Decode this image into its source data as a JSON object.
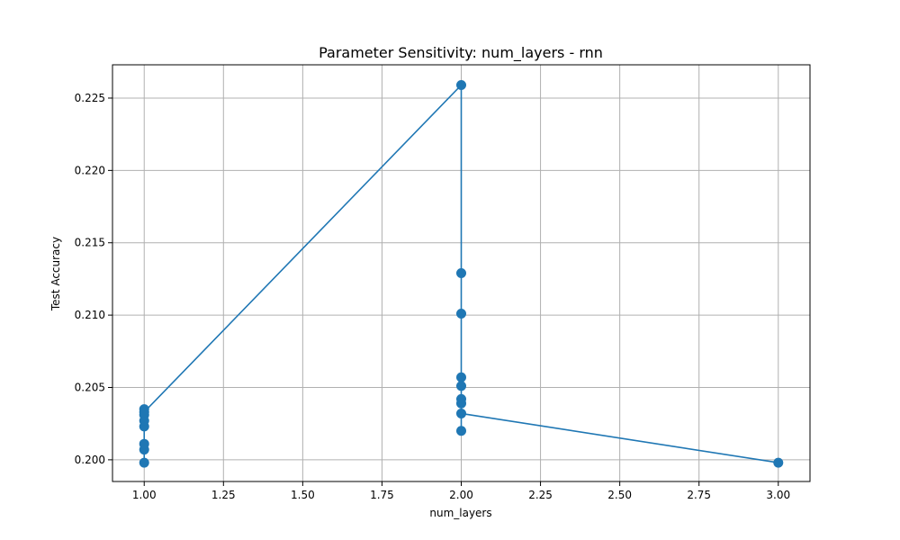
{
  "chart_data": {
    "type": "line",
    "title": "Parameter Sensitivity: num_layers - rnn",
    "xlabel": "num_layers",
    "ylabel": "Test Accuracy",
    "xlim": [
      0.9,
      3.1
    ],
    "ylim": [
      0.1985,
      0.2273
    ],
    "xticks": [
      1.0,
      1.25,
      1.5,
      1.75,
      2.0,
      2.25,
      2.5,
      2.75,
      3.0
    ],
    "xtick_labels": [
      "1.00",
      "1.25",
      "1.50",
      "1.75",
      "2.00",
      "2.25",
      "2.50",
      "2.75",
      "3.00"
    ],
    "yticks": [
      0.2,
      0.205,
      0.21,
      0.215,
      0.22,
      0.225
    ],
    "ytick_labels": [
      "0.200",
      "0.205",
      "0.210",
      "0.215",
      "0.220",
      "0.225"
    ],
    "grid": true,
    "series": [
      {
        "name": "rnn",
        "color": "#1f77b4",
        "x": [
          1,
          1,
          1,
          1,
          1,
          1,
          1,
          1,
          2,
          2,
          2,
          2,
          2,
          2,
          2,
          2,
          2,
          3
        ],
        "y": [
          0.1998,
          0.2007,
          0.2011,
          0.2023,
          0.2027,
          0.2031,
          0.2035,
          0.2033,
          0.2259,
          0.2129,
          0.2101,
          0.2057,
          0.2051,
          0.2042,
          0.2039,
          0.202,
          0.2032,
          0.1998
        ]
      }
    ]
  }
}
